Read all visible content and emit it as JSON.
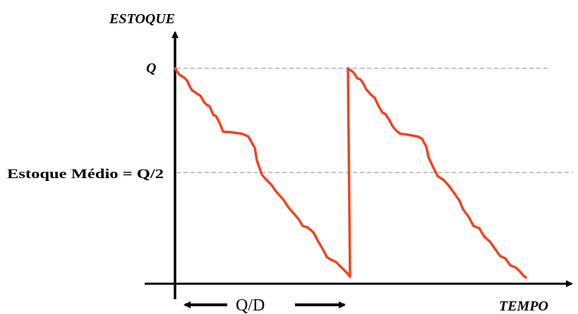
{
  "labels": {
    "y_axis": "ESTOQUE",
    "x_axis": "TEMPO",
    "q_level": "Q",
    "avg_level": "Estoque Médio = Q/2",
    "cycle": "Q/D"
  },
  "colors": {
    "inventory_line": "#ee4422",
    "axis": "#000000",
    "reference_line": "#888888"
  }
}
